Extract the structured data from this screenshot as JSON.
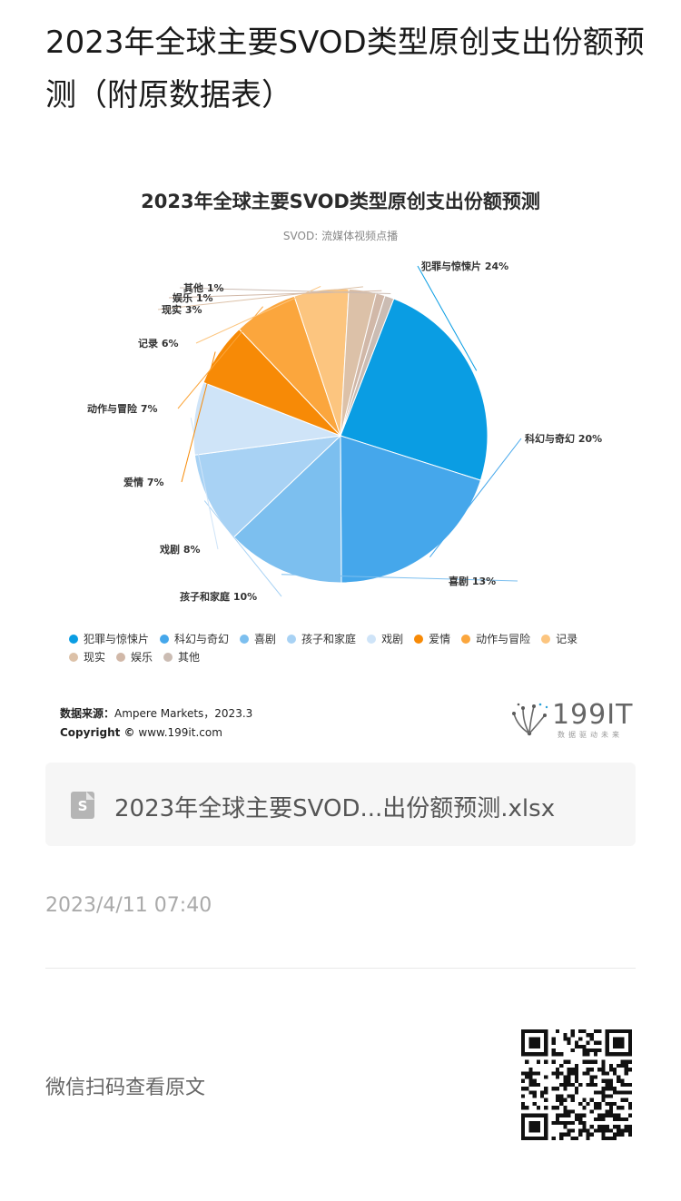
{
  "article": {
    "title": "2023年全球主要SVOD类型原创支出份额预测（附原数据表）"
  },
  "chart_data": {
    "type": "pie",
    "title": "2023年全球主要SVOD类型原创支出份额预测",
    "subtitle": "SVOD: 流媒体视频点播",
    "slices": [
      {
        "label": "犯罪与惊悚片",
        "value": 24,
        "display": "犯罪与惊悚片 24%",
        "color": "#0a9de3"
      },
      {
        "label": "科幻与奇幻",
        "value": 20,
        "display": "科幻与奇幻 20%",
        "color": "#45a7eb"
      },
      {
        "label": "喜剧",
        "value": 13,
        "display": "喜剧 13%",
        "color": "#7cbfef"
      },
      {
        "label": "孩子和家庭",
        "value": 10,
        "display": "孩子和家庭 10%",
        "color": "#a8d2f4"
      },
      {
        "label": "戏剧",
        "value": 8,
        "display": "戏剧 8%",
        "color": "#cfe4f8"
      },
      {
        "label": "爱情",
        "value": 7,
        "display": "爱情 7%",
        "color": "#f78a06"
      },
      {
        "label": "动作与冒险",
        "value": 7,
        "display": "动作与冒险 7%",
        "color": "#fba63d"
      },
      {
        "label": "记录",
        "value": 6,
        "display": "记录 6%",
        "color": "#fcc57f"
      },
      {
        "label": "现实",
        "value": 3,
        "display": "现实 3%",
        "color": "#dcc1a8"
      },
      {
        "label": "娱乐",
        "value": 1,
        "display": "娱乐 1%",
        "color": "#d1b8a8"
      },
      {
        "label": "其他",
        "value": 1,
        "display": "其他 1%",
        "color": "#cbbcb3"
      }
    ],
    "legend_position": "bottom"
  },
  "source": {
    "label": "数据来源：",
    "text": "Ampere Markets，2023.3",
    "copyright_label": "Copyright ©",
    "copyright_text": "www.199it.com"
  },
  "brand": {
    "name": "199IT",
    "tagline": "数据驱动未来"
  },
  "attachment": {
    "icon": "spreadsheet-file-icon",
    "icon_letter": "S",
    "filename": "2023年全球主要SVOD...出份额预测.xlsx"
  },
  "meta": {
    "date": "2023/4/11 07:40",
    "wechat_prompt": "微信扫码查看原文"
  }
}
